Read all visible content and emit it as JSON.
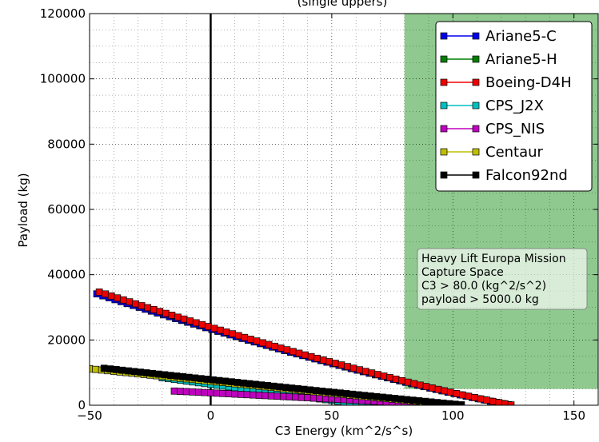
{
  "chart_data": {
    "type": "line",
    "title": "(single uppers)",
    "xlabel": "C3 Energy (km^2/s^s)",
    "ylabel": "Payload (kg)",
    "xlim": [
      -50,
      160
    ],
    "ylim": [
      0,
      120000
    ],
    "x_ticks": [
      -50,
      0,
      50,
      100,
      150
    ],
    "x_tick_labels": [
      "−50",
      "0",
      "50",
      "100",
      "150"
    ],
    "y_ticks": [
      0,
      20000,
      40000,
      60000,
      80000,
      100000,
      120000
    ],
    "y_tick_labels": [
      "0",
      "20000",
      "40000",
      "60000",
      "80000",
      "100000",
      "120000"
    ],
    "grid": true,
    "grid_style": "dotted",
    "legend_position": "top-right",
    "marker": "square",
    "reference_lines": [
      {
        "axis": "x",
        "value": 0,
        "color": "#000000"
      }
    ],
    "shaded_regions": [
      {
        "x_from": 80,
        "x_to": 160,
        "y_from": 5000,
        "y_to": 120000,
        "color": "#8fc98f"
      }
    ],
    "annotation": {
      "lines": [
        "Heavy Lift Europa Mission",
        "Capture Space",
        "C3 > 80.0 (kg^2/s^2)",
        "payload > 5000.0 kg"
      ]
    },
    "series": [
      {
        "name": "Ariane5-C",
        "color": "#0000ee",
        "a": 45,
        "b": 1.27,
        "n": 150,
        "c0": -47
      },
      {
        "name": "Ariane5-H",
        "color": "#007f00",
        "a": 5.79,
        "b": 1.08,
        "n": 60,
        "c0": -50
      },
      {
        "name": "Boeing-D4H",
        "color": "#ee0000",
        "a": 46,
        "b": 1.27,
        "n": 150,
        "c0": -46
      },
      {
        "name": "CPS_J2X",
        "color": "#00bfbf",
        "a": 72,
        "b": 1.06,
        "n": 97,
        "c0": -20
      },
      {
        "name": "CPS_NIS",
        "color": "#bf00bf",
        "a": 98,
        "b": 0.84,
        "n": 150,
        "c0": -15
      },
      {
        "name": "Centaur",
        "color": "#bfbf00",
        "a": 37,
        "b": 1.12,
        "n": 150,
        "c0": -50
      },
      {
        "name": "Falcon92nd",
        "color": "#000000",
        "a": 43,
        "b": 1.1,
        "n": 150,
        "c0": -44
      }
    ]
  }
}
